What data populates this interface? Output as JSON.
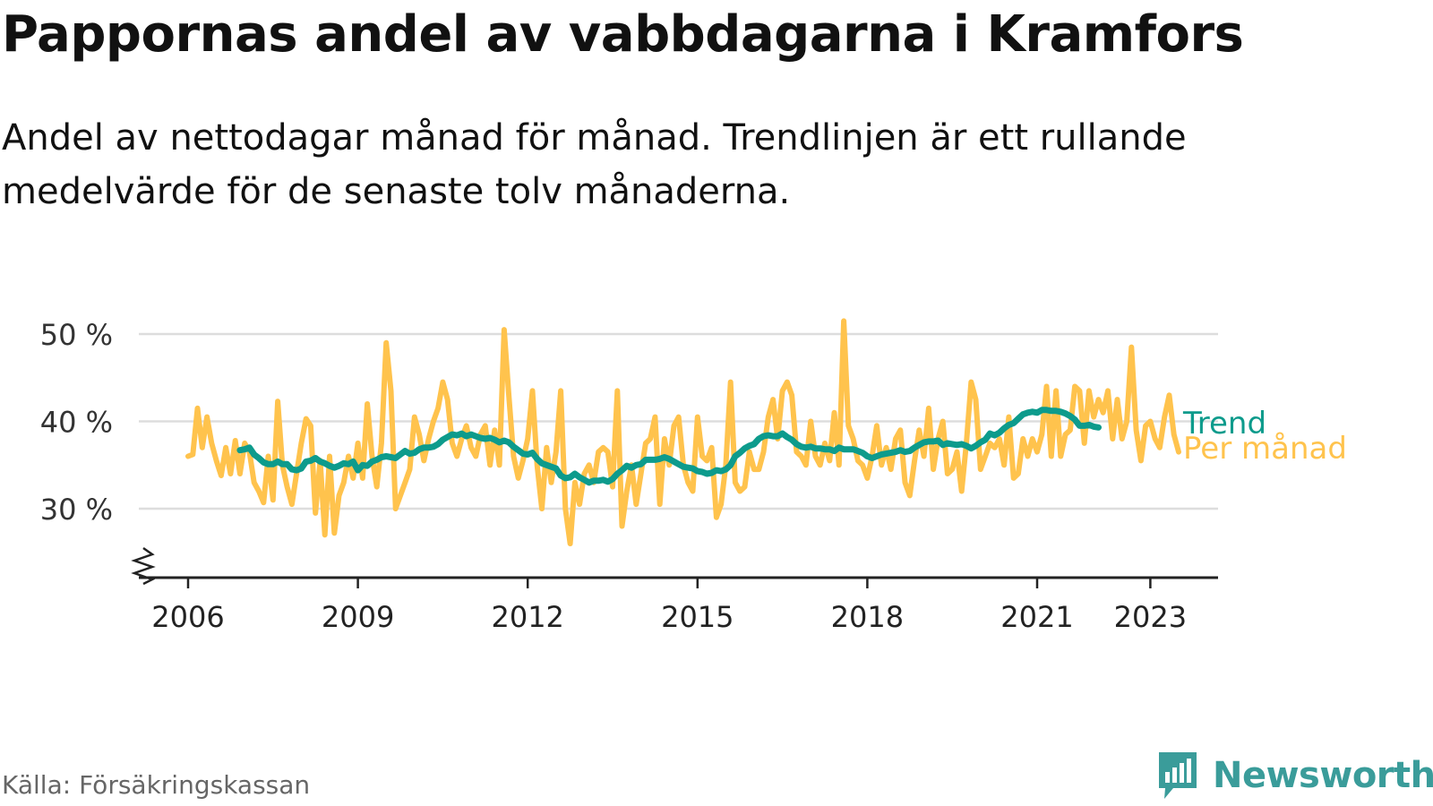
{
  "title": "Pappornas andel av vabbdagarna i Kramfors",
  "subtitle": "Andel av nettodagar månad för månad. Trendlinjen är ett rullande medelvärde för de senaste tolv månaderna.",
  "source": "Källa: Försäkringskassan",
  "brand": {
    "name": "Newsworthy",
    "color": "#3a9c9a"
  },
  "colors": {
    "monthly": "#ffc34d",
    "trend": "#0d9b8c",
    "grid": "#dddddd",
    "axis": "#222222"
  },
  "chart_data": {
    "type": "line",
    "title": "Pappornas andel av vabbdagarna i Kramfors",
    "xlabel": "",
    "ylabel": "",
    "y_unit": "%",
    "ylim": [
      22,
      52
    ],
    "y_ticks": [
      {
        "value": 30,
        "label": "30 %"
      },
      {
        "value": 40,
        "label": "40 %"
      },
      {
        "value": 50,
        "label": "50 %"
      }
    ],
    "x_ticks": [
      {
        "value": 2006,
        "label": "2006"
      },
      {
        "value": 2009,
        "label": "2009"
      },
      {
        "value": 2012,
        "label": "2012"
      },
      {
        "value": 2015,
        "label": "2015"
      },
      {
        "value": 2018,
        "label": "2018"
      },
      {
        "value": 2021,
        "label": "2021"
      },
      {
        "value": 2023,
        "label": "2023"
      }
    ],
    "grid": true,
    "series": [
      {
        "name": "Per månad",
        "color": "#ffc34d",
        "start": "2006-01",
        "step": "month",
        "values": [
          36.0,
          36.2,
          41.5,
          37.0,
          40.5,
          37.5,
          35.5,
          33.8,
          37.0,
          34.0,
          37.8,
          34.0,
          37.5,
          36.5,
          33.0,
          32.0,
          30.7,
          36.0,
          31.0,
          42.3,
          35.0,
          32.5,
          30.5,
          34.0,
          37.5,
          40.3,
          39.5,
          29.5,
          35.5,
          27.0,
          36.0,
          27.2,
          31.5,
          33.0,
          36.0,
          33.5,
          37.5,
          33.5,
          42.0,
          36.0,
          32.5,
          37.5,
          49.0,
          43.5,
          30.0,
          31.5,
          33.0,
          34.5,
          40.5,
          38.5,
          35.5,
          38.0,
          40.0,
          41.5,
          44.5,
          42.5,
          37.5,
          36.0,
          38.0,
          39.5,
          37.0,
          36.0,
          38.5,
          39.5,
          35.0,
          39.0,
          35.0,
          50.5,
          43.0,
          36.0,
          33.5,
          35.5,
          38.0,
          43.5,
          35.0,
          30.0,
          37.0,
          33.0,
          36.5,
          43.5,
          30.0,
          26.0,
          33.0,
          30.5,
          34.0,
          35.0,
          33.0,
          36.5,
          37.0,
          36.5,
          32.5,
          43.5,
          28.0,
          32.0,
          35.0,
          30.5,
          34.0,
          37.5,
          38.0,
          40.5,
          30.5,
          38.0,
          35.0,
          39.5,
          40.5,
          35.0,
          33.0,
          32.0,
          40.5,
          36.0,
          35.5,
          37.0,
          29.0,
          30.5,
          35.0,
          44.5,
          33.0,
          32.0,
          32.5,
          36.5,
          34.5,
          34.5,
          36.5,
          40.5,
          42.5,
          38.0,
          43.5,
          44.5,
          43.0,
          36.5,
          36.0,
          35.0,
          40.0,
          36.0,
          35.0,
          37.5,
          35.5,
          41.0,
          35.0,
          51.5,
          39.5,
          38.0,
          35.5,
          35.0,
          33.5,
          36.0,
          39.5,
          35.0,
          37.0,
          34.5,
          38.0,
          39.0,
          33.0,
          31.5,
          35.5,
          39.0,
          36.0,
          41.5,
          34.5,
          38.0,
          40.0,
          34.0,
          34.5,
          36.5,
          32.0,
          37.5,
          44.5,
          42.5,
          34.5,
          36.0,
          37.5,
          37.0,
          38.0,
          35.0,
          40.5,
          33.5,
          34.0,
          38.0,
          36.0,
          38.0,
          36.5,
          38.5,
          44.0,
          36.0,
          43.5,
          36.0,
          38.5,
          39.0,
          44.0,
          43.5,
          37.5,
          43.5,
          40.5,
          42.5,
          41.0,
          43.5,
          38.0,
          42.5,
          38.0,
          40.0,
          48.5,
          39.0,
          35.5,
          39.5,
          40.0,
          38.0,
          37.0,
          40.5,
          43.0,
          38.5,
          36.5
        ]
      },
      {
        "name": "Trend",
        "color": "#0d9b8c",
        "start": "2006-12",
        "step": "month",
        "values": [
          36.7,
          36.8,
          37.0,
          36.2,
          35.8,
          35.3,
          35.1,
          35.1,
          35.4,
          35.1,
          35.1,
          34.5,
          34.4,
          34.6,
          35.4,
          35.5,
          35.8,
          35.4,
          35.2,
          34.9,
          34.7,
          34.9,
          35.2,
          35.1,
          35.4,
          34.4,
          35.0,
          34.9,
          35.4,
          35.6,
          35.9,
          36.0,
          35.9,
          35.8,
          36.2,
          36.6,
          36.3,
          36.4,
          36.8,
          37.0,
          37.0,
          37.1,
          37.4,
          37.9,
          38.2,
          38.5,
          38.4,
          38.6,
          38.3,
          38.5,
          38.3,
          38.1,
          38.0,
          38.1,
          37.9,
          37.6,
          37.8,
          37.6,
          37.1,
          36.7,
          36.3,
          36.2,
          36.4,
          35.7,
          35.2,
          35.0,
          34.8,
          34.6,
          33.8,
          33.5,
          33.6,
          34.0,
          33.6,
          33.3,
          33.0,
          33.2,
          33.2,
          33.3,
          33.1,
          33.4,
          34.0,
          34.4,
          34.9,
          34.7,
          35.0,
          35.1,
          35.6,
          35.6,
          35.6,
          35.7,
          35.9,
          35.7,
          35.4,
          35.1,
          34.8,
          34.7,
          34.6,
          34.3,
          34.2,
          34.0,
          34.1,
          34.4,
          34.3,
          34.5,
          35.0,
          36.0,
          36.4,
          36.9,
          37.2,
          37.4,
          38.0,
          38.3,
          38.4,
          38.3,
          38.3,
          38.6,
          38.2,
          37.9,
          37.4,
          37.1,
          37.0,
          37.1,
          36.9,
          36.9,
          36.8,
          36.8,
          36.6,
          37.0,
          36.8,
          36.8,
          36.8,
          36.6,
          36.4,
          36.0,
          35.8,
          36.0,
          36.2,
          36.3,
          36.4,
          36.5,
          36.7,
          36.5,
          36.6,
          37.0,
          37.3,
          37.6,
          37.7,
          37.7,
          37.8,
          37.3,
          37.5,
          37.4,
          37.3,
          37.4,
          37.2,
          36.9,
          37.2,
          37.6,
          37.9,
          38.6,
          38.4,
          38.7,
          39.2,
          39.6,
          39.8,
          40.3,
          40.8,
          41.0,
          41.1,
          41.0,
          41.3,
          41.3,
          41.2,
          41.2,
          41.1,
          40.9,
          40.6,
          40.2,
          39.5,
          39.5,
          39.6,
          39.4,
          39.3
        ]
      }
    ]
  }
}
